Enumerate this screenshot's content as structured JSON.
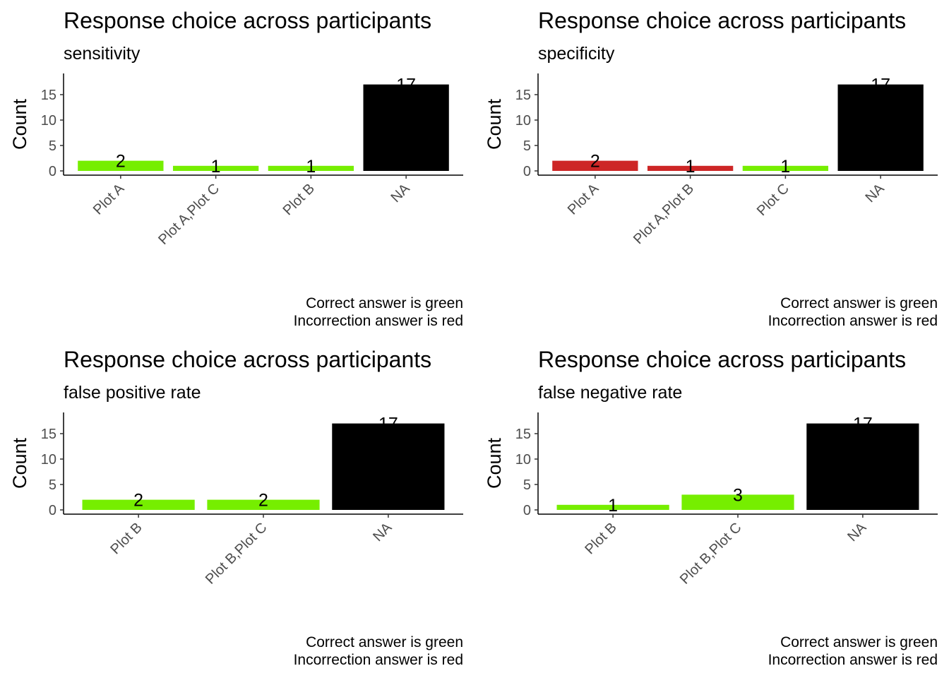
{
  "chart_data": [
    {
      "type": "bar",
      "title": "Response choice across participants",
      "subtitle": "sensitivity",
      "ylabel": "Count",
      "xlabel": "",
      "ylim": [
        0,
        18
      ],
      "yticks": [
        0,
        5,
        10,
        15
      ],
      "grid": false,
      "categories": [
        "Plot A",
        "Plot A,Plot C",
        "Plot B",
        "NA"
      ],
      "values": [
        2,
        1,
        1,
        17
      ],
      "colors": [
        "#76EE00",
        "#76EE00",
        "#76EE00",
        "#000000"
      ],
      "caption": [
        "Correct answer is green",
        "Incorrection answer is red"
      ]
    },
    {
      "type": "bar",
      "title": "Response choice across participants",
      "subtitle": "specificity",
      "ylabel": "Count",
      "xlabel": "",
      "ylim": [
        0,
        18
      ],
      "yticks": [
        0,
        5,
        10,
        15
      ],
      "grid": false,
      "categories": [
        "Plot A",
        "Plot A,Plot B",
        "Plot C",
        "NA"
      ],
      "values": [
        2,
        1,
        1,
        17
      ],
      "colors": [
        "#CD2626",
        "#CD2626",
        "#76EE00",
        "#000000"
      ],
      "caption": [
        "Correct answer is green",
        "Incorrection answer is red"
      ]
    },
    {
      "type": "bar",
      "title": "Response choice across participants",
      "subtitle": "false positive rate",
      "ylabel": "Count",
      "xlabel": "",
      "ylim": [
        0,
        18
      ],
      "yticks": [
        0,
        5,
        10,
        15
      ],
      "grid": false,
      "categories": [
        "Plot B",
        "Plot B,Plot C",
        "NA"
      ],
      "values": [
        2,
        2,
        17
      ],
      "colors": [
        "#76EE00",
        "#76EE00",
        "#000000"
      ],
      "caption": [
        "Correct answer is green",
        "Incorrection answer is red"
      ]
    },
    {
      "type": "bar",
      "title": "Response choice across participants",
      "subtitle": "false negative rate",
      "ylabel": "Count",
      "xlabel": "",
      "ylim": [
        0,
        18
      ],
      "yticks": [
        0,
        5,
        10,
        15
      ],
      "grid": false,
      "categories": [
        "Plot B",
        "Plot B,Plot C",
        "NA"
      ],
      "values": [
        1,
        3,
        17
      ],
      "colors": [
        "#76EE00",
        "#76EE00",
        "#000000"
      ],
      "caption": [
        "Correct answer is green",
        "Incorrection answer is red"
      ]
    }
  ]
}
